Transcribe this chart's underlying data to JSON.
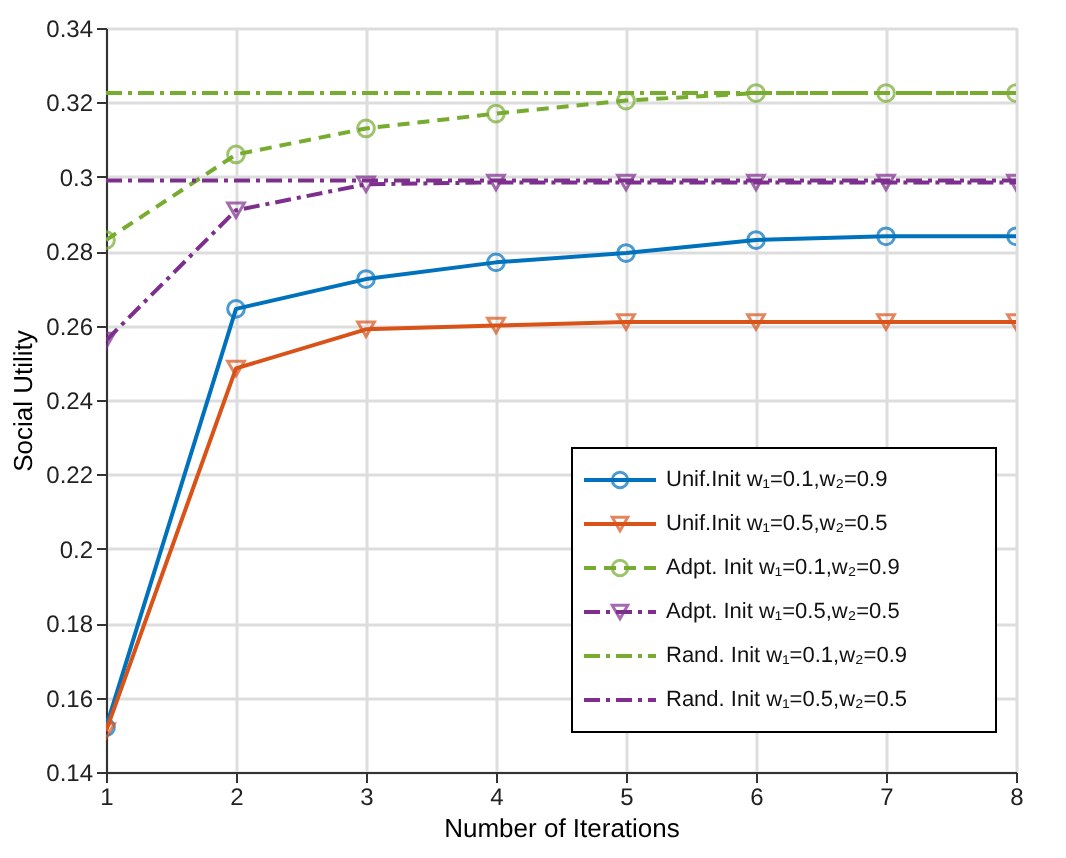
{
  "chart_data": {
    "type": "line",
    "xlabel": "Number of Iterations",
    "ylabel": "Social Utility",
    "x": [
      1,
      2,
      3,
      4,
      5,
      6,
      7,
      8
    ],
    "series": [
      {
        "name": "Unif.Init w₁=0.1,w₂=0.9",
        "color": "#0072bd",
        "marker": "circle",
        "line_style": "solid",
        "values": [
          0.152,
          0.2645,
          0.2725,
          0.277,
          0.2795,
          0.283,
          0.284,
          0.284
        ]
      },
      {
        "name": "Unif.Init w₁=0.5,w₂=0.5",
        "color": "#d95319",
        "marker": "triangle",
        "line_style": "solid",
        "values": [
          0.151,
          0.2485,
          0.259,
          0.26,
          0.261,
          0.261,
          0.261,
          0.261
        ]
      },
      {
        "name": "Adpt. Init w₁=0.1,w₂=0.9",
        "color": "#77ac30",
        "marker": "circle",
        "line_style": "dashed",
        "values": [
          0.283,
          0.306,
          0.313,
          0.317,
          0.3205,
          0.3225,
          0.3225,
          0.3225
        ]
      },
      {
        "name": "Adpt. Init w₁=0.5,w₂=0.5",
        "color": "#7e2f8e",
        "marker": "triangle",
        "line_style": "dashdot",
        "values": [
          0.256,
          0.291,
          0.298,
          0.2985,
          0.2985,
          0.2985,
          0.2985,
          0.2985
        ]
      },
      {
        "name": "Rand. Init w₁=0.1,w₂=0.9",
        "color": "#77ac30",
        "marker": "none",
        "line_style": "dashdot",
        "values": [
          0.3225,
          0.3225,
          0.3225,
          0.3225,
          0.3225,
          0.3225,
          0.3225,
          0.3225
        ]
      },
      {
        "name": "Rand. Init w₁=0.5,w₂=0.5",
        "color": "#7e2f8e",
        "marker": "none",
        "line_style": "dashdot",
        "values": [
          0.299,
          0.299,
          0.299,
          0.299,
          0.299,
          0.299,
          0.299,
          0.299
        ]
      }
    ],
    "xlim": [
      1,
      8
    ],
    "xticks": [
      1,
      2,
      3,
      4,
      5,
      6,
      7,
      8
    ],
    "ylim": [
      0.14,
      0.34
    ],
    "yticks": [
      0.14,
      0.16,
      0.18,
      0.2,
      0.22,
      0.24,
      0.26,
      0.28,
      0.3,
      0.32,
      0.34
    ],
    "grid": true,
    "legend": "bottom right"
  }
}
